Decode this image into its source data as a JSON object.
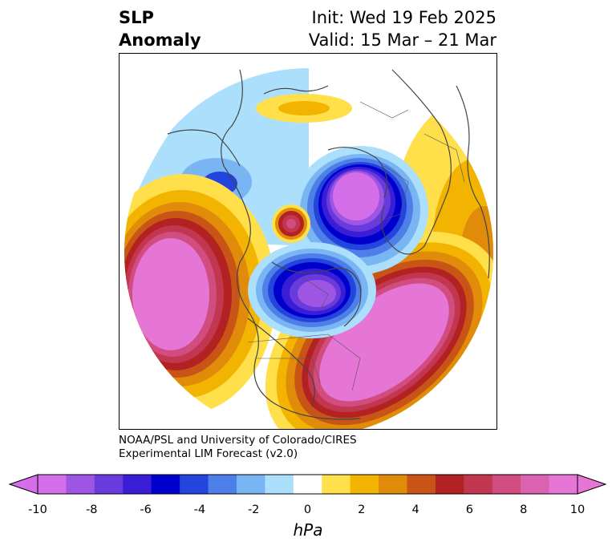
{
  "title": {
    "left_line1": "SLP",
    "left_line2": "Anomaly",
    "right_line1": "Init: Wed 19 Feb 2025",
    "right_line2": "Valid: 15 Mar – 21 Mar"
  },
  "credits": {
    "line1": "NOAA/PSL and University of Colorado/CIRES",
    "line2": "Experimental LIM Forecast (v2.0)"
  },
  "colorbar": {
    "unit": "hPa",
    "ticks": [
      "-10",
      "-8",
      "-6",
      "-4",
      "-2",
      "0",
      "2",
      "4",
      "6",
      "8",
      "10"
    ],
    "colors": [
      "#d46ee9",
      "#9e55e3",
      "#6a3bdc",
      "#3a1ed6",
      "#0000cd",
      "#2445dd",
      "#4e7ee8",
      "#7ab5f3",
      "#abdffc",
      "#ffffff",
      "#ffe04a",
      "#f2b400",
      "#e08c0a",
      "#c85516",
      "#b22222",
      "#c23650",
      "#d14d80",
      "#db62b0",
      "#e676d6"
    ],
    "under_color": "#d46ee9",
    "over_color": "#e676d6"
  }
}
